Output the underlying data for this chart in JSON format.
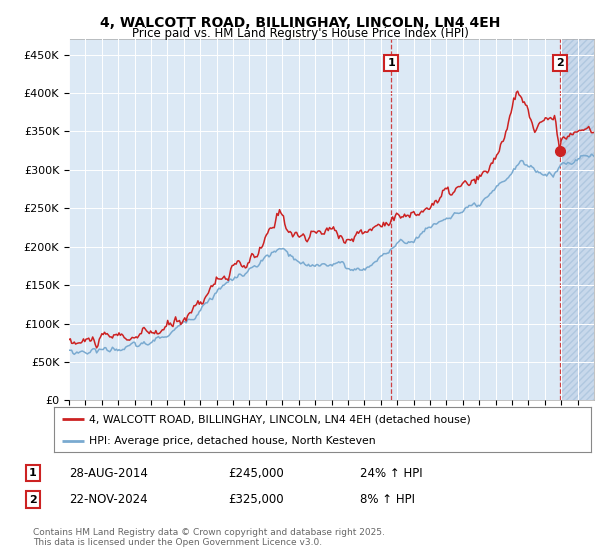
{
  "title": "4, WALCOTT ROAD, BILLINGHAY, LINCOLN, LN4 4EH",
  "subtitle": "Price paid vs. HM Land Registry's House Price Index (HPI)",
  "ylim": [
    0,
    470000
  ],
  "yticks": [
    0,
    50000,
    100000,
    150000,
    200000,
    250000,
    300000,
    350000,
    400000,
    450000
  ],
  "ytick_labels": [
    "£0",
    "£50K",
    "£100K",
    "£150K",
    "£200K",
    "£250K",
    "£300K",
    "£350K",
    "£400K",
    "£450K"
  ],
  "bg_color": "#dce9f5",
  "hatch_color": "#c8d8eb",
  "line1_color": "#cc2222",
  "line2_color": "#7aaad0",
  "legend_line1": "4, WALCOTT ROAD, BILLINGHAY, LINCOLN, LN4 4EH (detached house)",
  "legend_line2": "HPI: Average price, detached house, North Kesteven",
  "annotation1_text": "28-AUG-2014",
  "annotation1_price": "£245,000",
  "annotation1_hpi": "24% ↑ HPI",
  "annotation2_text": "22-NOV-2024",
  "annotation2_price": "£325,000",
  "annotation2_hpi": "8% ↑ HPI",
  "footer": "Contains HM Land Registry data © Crown copyright and database right 2025.\nThis data is licensed under the Open Government Licence v3.0.",
  "sale1_x": 2014.65,
  "sale1_y": 245000,
  "sale2_x": 2024.9,
  "sale2_y": 325000,
  "xmin": 1995,
  "xmax": 2027,
  "hatch_start": 2025.0
}
